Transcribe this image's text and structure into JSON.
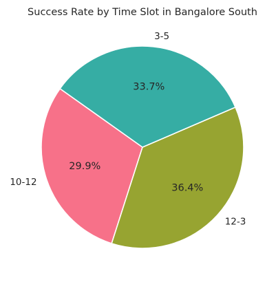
{
  "chart_data": {
    "type": "pie",
    "title": "Success Rate by Time Slot in Bangalore South",
    "slices": [
      {
        "label": "10-12",
        "value": 29.9,
        "pct_text": "29.9%",
        "color": "#f77189"
      },
      {
        "label": "12-3",
        "value": 36.4,
        "pct_text": "36.4%",
        "color": "#97a431"
      },
      {
        "label": "3-5",
        "value": 33.7,
        "pct_text": "33.7%",
        "color": "#36ada4"
      }
    ],
    "start_angle_deg": 144.6,
    "direction": "counterclockwise"
  }
}
